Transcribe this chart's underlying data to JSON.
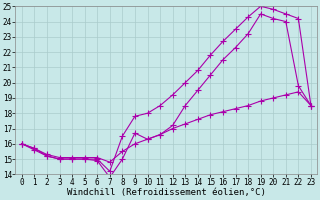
{
  "xlabel": "Windchill (Refroidissement éolien,°C)",
  "ylabel": "",
  "background_color": "#c8e8e8",
  "grid_color": "#aacccc",
  "line_color": "#aa00aa",
  "xlim": [
    -0.5,
    23.5
  ],
  "ylim": [
    14,
    25
  ],
  "xticks": [
    0,
    1,
    2,
    3,
    4,
    5,
    6,
    7,
    8,
    9,
    10,
    11,
    12,
    13,
    14,
    15,
    16,
    17,
    18,
    19,
    20,
    21,
    22,
    23
  ],
  "yticks": [
    14,
    15,
    16,
    17,
    18,
    19,
    20,
    21,
    22,
    23,
    24,
    25
  ],
  "line1_x": [
    0,
    1,
    2,
    3,
    4,
    5,
    6,
    7,
    8,
    9,
    10,
    11,
    12,
    13,
    14,
    15,
    16,
    17,
    18,
    19,
    20,
    21,
    22,
    23
  ],
  "line1_y": [
    16.0,
    15.6,
    15.2,
    15.0,
    15.0,
    15.0,
    14.9,
    13.8,
    15.0,
    16.7,
    16.3,
    16.6,
    17.2,
    18.5,
    19.5,
    20.5,
    21.5,
    22.3,
    23.2,
    24.5,
    24.2,
    24.0,
    19.8,
    18.5
  ],
  "line2_x": [
    0,
    1,
    2,
    3,
    4,
    5,
    6,
    7,
    8,
    9,
    10,
    11,
    12,
    13,
    14,
    15,
    16,
    17,
    18,
    19,
    20,
    21,
    22,
    23
  ],
  "line2_y": [
    16.0,
    15.7,
    15.2,
    15.0,
    15.0,
    15.0,
    15.0,
    14.2,
    16.5,
    17.8,
    18.0,
    18.5,
    19.2,
    20.0,
    20.8,
    21.8,
    22.7,
    23.5,
    24.3,
    25.0,
    24.8,
    24.5,
    24.2,
    18.5
  ],
  "line3_x": [
    0,
    1,
    2,
    3,
    4,
    5,
    6,
    7,
    8,
    9,
    10,
    11,
    12,
    13,
    14,
    15,
    16,
    17,
    18,
    19,
    20,
    21,
    22,
    23
  ],
  "line3_y": [
    16.0,
    15.7,
    15.3,
    15.1,
    15.1,
    15.1,
    15.1,
    14.8,
    15.5,
    16.0,
    16.3,
    16.6,
    17.0,
    17.3,
    17.6,
    17.9,
    18.1,
    18.3,
    18.5,
    18.8,
    19.0,
    19.2,
    19.4,
    18.5
  ],
  "marker": "+",
  "markersize": 4,
  "linewidth": 0.8,
  "tick_fontsize": 5.5,
  "xlabel_fontsize": 6.5
}
